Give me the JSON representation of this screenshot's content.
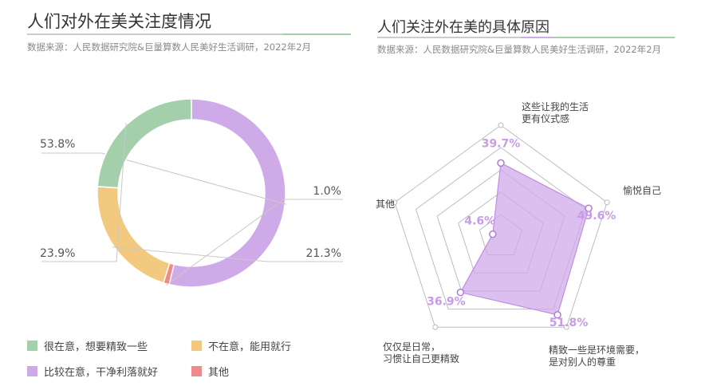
{
  "left": {
    "title": "人们对外在美关注度情况",
    "subtitle": "数据来源：人民数据研究院&巨量算数人民美好生活调研，2022年2月"
  },
  "right": {
    "title": "人们关注外在美的具体原因",
    "subtitle": "数据来源：人民数据研究院&巨量算数人民美好生活调研，2022年2月"
  },
  "colors": {
    "green": "#a3cfaa",
    "yellow": "#f3c97f",
    "purple": "#cfaae9",
    "red": "#f08a8a",
    "rule_gray": "#cccccc",
    "rule_purple": "#cfaae9",
    "rule_green": "#a3cfaa"
  },
  "chart_data": [
    {
      "type": "pie",
      "donut": true,
      "title": "人们对外在美关注度情况",
      "slices": [
        {
          "label": "比较在意，干净利落就好",
          "value": 53.8,
          "display": "53.8%",
          "color": "#cfaae9"
        },
        {
          "label": "其他",
          "value": 1.0,
          "display": "1.0%",
          "color": "#f08a8a"
        },
        {
          "label": "不在意，能用就行",
          "value": 21.3,
          "display": "21.3%",
          "color": "#f3c97f"
        },
        {
          "label": "很在意，想要精致一些",
          "value": 23.9,
          "display": "23.9%",
          "color": "#a3cfaa"
        }
      ],
      "legend": [
        {
          "label": "很在意，想要精致一些",
          "color": "#a3cfaa"
        },
        {
          "label": "不在意，能用就行",
          "color": "#f3c97f"
        },
        {
          "label": "比较在意，干净利落就好",
          "color": "#cfaae9"
        },
        {
          "label": "其他",
          "color": "#f08a8a"
        }
      ]
    },
    {
      "type": "radar",
      "title": "人们关注外在美的具体原因",
      "max": 60,
      "rings": 5,
      "axes": [
        {
          "label_lines": [
            "这些让我的生活",
            "更有仪式感"
          ],
          "value": 39.7,
          "display": "39.7%"
        },
        {
          "label_lines": [
            "愉悦自己"
          ],
          "value": 49.6,
          "display": "49.6%"
        },
        {
          "label_lines": [
            "精致一些是环境需要，",
            "是对别人的尊重"
          ],
          "value": 51.8,
          "display": "51.8%"
        },
        {
          "label_lines": [
            "仅仅是日常，",
            "习惯让自己更精致"
          ],
          "value": 36.9,
          "display": "36.9%"
        },
        {
          "label_lines": [
            "其他"
          ],
          "value": 4.6,
          "display": "4.6%"
        }
      ],
      "color": "#cfaae9"
    }
  ]
}
